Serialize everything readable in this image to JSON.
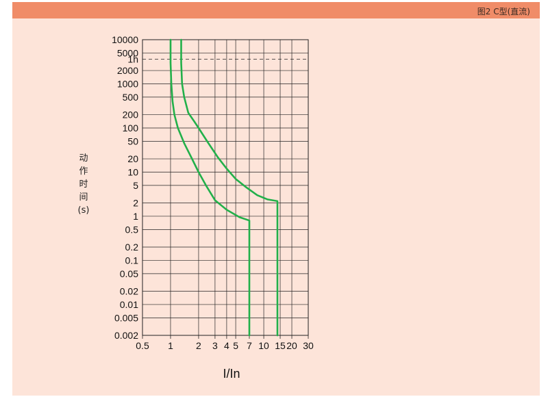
{
  "header": {
    "title": "图2   C型(直流)"
  },
  "colors": {
    "header": "#f08c68",
    "panel": "#fde4d9",
    "curve": "#22b04a",
    "grid": "#222222"
  },
  "chart_data": {
    "type": "line",
    "title": "",
    "xlabel": "I/In",
    "ylabel_chars": [
      "动",
      "作",
      "时",
      "间",
      "(s)"
    ],
    "x_scale": "log",
    "y_scale": "log",
    "xlim": [
      0.5,
      30
    ],
    "ylim": [
      0.002,
      10000
    ],
    "x_ticks": [
      {
        "value": 0.5,
        "label": "0.5"
      },
      {
        "value": 1,
        "label": "1"
      },
      {
        "value": 2,
        "label": "2"
      },
      {
        "value": 3,
        "label": "3"
      },
      {
        "value": 4,
        "label": "4"
      },
      {
        "value": 5,
        "label": "5"
      },
      {
        "value": 7,
        "label": "7"
      },
      {
        "value": 10,
        "label": "10"
      },
      {
        "value": 15,
        "label": "15"
      },
      {
        "value": 20,
        "label": "20"
      },
      {
        "value": 30,
        "label": "30"
      }
    ],
    "y_ticks": [
      {
        "value": 10000,
        "label": "10000"
      },
      {
        "value": 5000,
        "label": "5000"
      },
      {
        "value": 3600,
        "label": "1h"
      },
      {
        "value": 2000,
        "label": "2000"
      },
      {
        "value": 1000,
        "label": "1000"
      },
      {
        "value": 500,
        "label": "500"
      },
      {
        "value": 200,
        "label": "200"
      },
      {
        "value": 100,
        "label": "100"
      },
      {
        "value": 50,
        "label": "50"
      },
      {
        "value": 20,
        "label": "20"
      },
      {
        "value": 10,
        "label": "10"
      },
      {
        "value": 5,
        "label": "5"
      },
      {
        "value": 2,
        "label": "2"
      },
      {
        "value": 1,
        "label": "1"
      },
      {
        "value": 0.5,
        "label": "0.5"
      },
      {
        "value": 0.2,
        "label": "0.2"
      },
      {
        "value": 0.1,
        "label": "0.1"
      },
      {
        "value": 0.05,
        "label": "0.05"
      },
      {
        "value": 0.02,
        "label": "0.02"
      },
      {
        "value": 0.01,
        "label": "0.01"
      },
      {
        "value": 0.005,
        "label": "0.005"
      },
      {
        "value": 0.002,
        "label": "0.002"
      }
    ],
    "dashed_reference": {
      "value": 3600,
      "label": "1h"
    },
    "grid": true,
    "series": [
      {
        "points": [
          [
            1.0,
            10000
          ],
          [
            1.0,
            3000
          ],
          [
            1.02,
            1000
          ],
          [
            1.05,
            400
          ],
          [
            1.1,
            200
          ],
          [
            1.2,
            100
          ],
          [
            1.4,
            45
          ],
          [
            1.7,
            20
          ],
          [
            2.0,
            10
          ],
          [
            2.4,
            5
          ],
          [
            3.0,
            2.3
          ],
          [
            4.0,
            1.4
          ],
          [
            5.5,
            0.95
          ],
          [
            7.0,
            0.8
          ],
          [
            7.0,
            0.002
          ]
        ]
      },
      {
        "points": [
          [
            1.3,
            10000
          ],
          [
            1.3,
            3000
          ],
          [
            1.33,
            1000
          ],
          [
            1.4,
            500
          ],
          [
            1.55,
            220
          ],
          [
            1.8,
            140
          ],
          [
            2.0,
            100
          ],
          [
            2.5,
            48
          ],
          [
            3.2,
            22
          ],
          [
            4.0,
            12
          ],
          [
            5.0,
            7
          ],
          [
            6.5,
            4.5
          ],
          [
            8.5,
            3
          ],
          [
            11.0,
            2.4
          ],
          [
            14.0,
            2.2
          ],
          [
            14.0,
            0.002
          ]
        ]
      }
    ]
  }
}
